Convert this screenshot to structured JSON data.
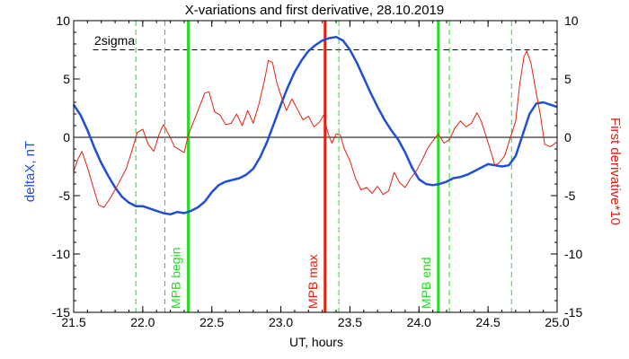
{
  "chart_data": {
    "type": "line",
    "title": "X-variations and first derivative, 28.10.2019",
    "xlabel": "UT, hours",
    "ylabel_left": "deltaX, nT",
    "ylabel_right": "First derivative*10",
    "xlim": [
      21.5,
      25.0
    ],
    "ylim": [
      -15,
      10
    ],
    "x_ticks": [
      "21.5",
      "22.0",
      "22.5",
      "23.0",
      "23.5",
      "24.0",
      "24.5",
      "25.0"
    ],
    "y_ticks_left": [
      "10",
      "5",
      "0",
      "-5",
      "-10",
      "-15"
    ],
    "y_ticks_right": [
      "10",
      "5",
      "0",
      "-5",
      "-10",
      "-15"
    ],
    "threshold": {
      "label": "2sigma",
      "value": 7.5
    },
    "zero_line": 0,
    "series": [
      {
        "color": "#1f4fd8",
        "axis": "left",
        "points": [
          [
            21.5,
            2.8
          ],
          [
            21.55,
            1.9
          ],
          [
            21.6,
            0.6
          ],
          [
            21.65,
            -0.9
          ],
          [
            21.7,
            -2.2
          ],
          [
            21.75,
            -3.3
          ],
          [
            21.8,
            -4.3
          ],
          [
            21.85,
            -5.1
          ],
          [
            21.9,
            -5.6
          ],
          [
            21.95,
            -5.9
          ],
          [
            22.0,
            -5.9
          ],
          [
            22.05,
            -6.1
          ],
          [
            22.1,
            -6.3
          ],
          [
            22.15,
            -6.5
          ],
          [
            22.2,
            -6.6
          ],
          [
            22.25,
            -6.4
          ],
          [
            22.3,
            -6.5
          ],
          [
            22.35,
            -6.3
          ],
          [
            22.4,
            -6.0
          ],
          [
            22.45,
            -5.5
          ],
          [
            22.5,
            -4.7
          ],
          [
            22.55,
            -4.1
          ],
          [
            22.6,
            -3.8
          ],
          [
            22.7,
            -3.5
          ],
          [
            22.75,
            -3.2
          ],
          [
            22.8,
            -2.7
          ],
          [
            22.85,
            -1.7
          ],
          [
            22.9,
            -0.4
          ],
          [
            22.95,
            1.2
          ],
          [
            23.0,
            2.8
          ],
          [
            23.05,
            4.3
          ],
          [
            23.1,
            5.6
          ],
          [
            23.15,
            6.6
          ],
          [
            23.2,
            7.4
          ],
          [
            23.25,
            7.9
          ],
          [
            23.3,
            8.3
          ],
          [
            23.35,
            8.5
          ],
          [
            23.4,
            8.6
          ],
          [
            23.45,
            8.3
          ],
          [
            23.5,
            7.5
          ],
          [
            23.55,
            6.4
          ],
          [
            23.6,
            5.1
          ],
          [
            23.65,
            3.8
          ],
          [
            23.7,
            2.6
          ],
          [
            23.75,
            1.5
          ],
          [
            23.8,
            0.6
          ],
          [
            23.85,
            -0.2
          ],
          [
            23.9,
            -1.3
          ],
          [
            23.95,
            -2.6
          ],
          [
            24.0,
            -3.6
          ],
          [
            24.05,
            -4.0
          ],
          [
            24.1,
            -4.1
          ],
          [
            24.15,
            -4.0
          ],
          [
            24.2,
            -3.8
          ],
          [
            24.25,
            -3.5
          ],
          [
            24.3,
            -3.4
          ],
          [
            24.35,
            -3.2
          ],
          [
            24.4,
            -2.9
          ],
          [
            24.45,
            -2.6
          ],
          [
            24.5,
            -2.3
          ],
          [
            24.55,
            -2.4
          ],
          [
            24.6,
            -2.5
          ],
          [
            24.65,
            -2.4
          ],
          [
            24.7,
            -1.6
          ],
          [
            24.75,
            0.2
          ],
          [
            24.8,
            2.0
          ],
          [
            24.85,
            2.9
          ],
          [
            24.9,
            3.0
          ],
          [
            24.95,
            2.8
          ],
          [
            25.0,
            2.6
          ]
        ]
      },
      {
        "color": "#e2200f",
        "axis": "right",
        "points": [
          [
            21.5,
            -2.9
          ],
          [
            21.53,
            -1.9
          ],
          [
            21.56,
            -1.2
          ],
          [
            21.6,
            -2.6
          ],
          [
            21.64,
            -4.2
          ],
          [
            21.68,
            -5.8
          ],
          [
            21.72,
            -6.0
          ],
          [
            21.76,
            -5.3
          ],
          [
            21.8,
            -4.5
          ],
          [
            21.84,
            -3.6
          ],
          [
            21.88,
            -2.7
          ],
          [
            21.92,
            -1.2
          ],
          [
            21.96,
            0.4
          ],
          [
            22.0,
            0.7
          ],
          [
            22.04,
            -0.6
          ],
          [
            22.08,
            -1.2
          ],
          [
            22.12,
            0.3
          ],
          [
            22.15,
            1.1
          ],
          [
            22.19,
            0.2
          ],
          [
            22.23,
            -0.8
          ],
          [
            22.27,
            -1.1
          ],
          [
            22.3,
            -1.3
          ],
          [
            22.33,
            0.2
          ],
          [
            22.37,
            1.4
          ],
          [
            22.41,
            2.6
          ],
          [
            22.45,
            3.8
          ],
          [
            22.48,
            3.9
          ],
          [
            22.52,
            2.2
          ],
          [
            22.56,
            1.9
          ],
          [
            22.6,
            1.1
          ],
          [
            22.64,
            1.2
          ],
          [
            22.68,
            2.0
          ],
          [
            22.72,
            1.0
          ],
          [
            22.76,
            2.3
          ],
          [
            22.8,
            1.2
          ],
          [
            22.84,
            2.8
          ],
          [
            22.88,
            4.8
          ],
          [
            22.91,
            6.6
          ],
          [
            22.94,
            6.4
          ],
          [
            22.97,
            4.7
          ],
          [
            23.0,
            3.6
          ],
          [
            23.04,
            2.3
          ],
          [
            23.08,
            3.3
          ],
          [
            23.12,
            2.4
          ],
          [
            23.16,
            1.5
          ],
          [
            23.2,
            1.8
          ],
          [
            23.24,
            0.9
          ],
          [
            23.28,
            1.3
          ],
          [
            23.31,
            1.9
          ],
          [
            23.34,
            0.4
          ],
          [
            23.37,
            -0.5
          ],
          [
            23.4,
            0.3
          ],
          [
            23.43,
            0.2
          ],
          [
            23.46,
            -1.0
          ],
          [
            23.5,
            -2.0
          ],
          [
            23.54,
            -3.5
          ],
          [
            23.58,
            -4.5
          ],
          [
            23.62,
            -4.3
          ],
          [
            23.66,
            -4.8
          ],
          [
            23.7,
            -4.2
          ],
          [
            23.74,
            -4.9
          ],
          [
            23.78,
            -4.6
          ],
          [
            23.82,
            -3.0
          ],
          [
            23.86,
            -3.9
          ],
          [
            23.9,
            -4.3
          ],
          [
            23.94,
            -3.5
          ],
          [
            23.98,
            -2.9
          ],
          [
            24.02,
            -2.0
          ],
          [
            24.06,
            -1.0
          ],
          [
            24.1,
            -0.3
          ],
          [
            24.14,
            0.3
          ],
          [
            24.18,
            -0.5
          ],
          [
            24.22,
            -0.2
          ],
          [
            24.26,
            0.8
          ],
          [
            24.3,
            1.4
          ],
          [
            24.34,
            0.9
          ],
          [
            24.38,
            1.2
          ],
          [
            24.42,
            2.1
          ],
          [
            24.45,
            1.4
          ],
          [
            24.48,
            0.3
          ],
          [
            24.52,
            -1.2
          ],
          [
            24.55,
            -2.4
          ],
          [
            24.58,
            -2.2
          ],
          [
            24.62,
            -1.6
          ],
          [
            24.66,
            -0.1
          ],
          [
            24.7,
            1.4
          ],
          [
            24.73,
            4.6
          ],
          [
            24.76,
            6.9
          ],
          [
            24.78,
            7.4
          ],
          [
            24.81,
            6.4
          ],
          [
            24.84,
            4.4
          ],
          [
            24.88,
            1.8
          ],
          [
            24.91,
            -0.6
          ],
          [
            24.95,
            -0.8
          ],
          [
            25.0,
            -0.4
          ]
        ]
      }
    ],
    "vertical_markers": [
      {
        "x": 21.95,
        "color": "#22dd22",
        "style": "dashed"
      },
      {
        "x": 22.16,
        "color": "#22dd22",
        "style": "dashed"
      },
      {
        "x": 22.33,
        "color": "#22dd22",
        "style": "solid",
        "label": "MPB begin"
      },
      {
        "x": 23.32,
        "color": "#e2200f",
        "style": "solid",
        "label": "MPB max"
      },
      {
        "x": 23.42,
        "color": "#22dd22",
        "style": "dashed"
      },
      {
        "x": 24.14,
        "color": "#22dd22",
        "style": "solid",
        "label": "MPB end"
      },
      {
        "x": 24.22,
        "color": "#22dd22",
        "style": "dashed"
      },
      {
        "x": 24.67,
        "color": "#22dd22",
        "style": "dashed"
      }
    ],
    "grid": false
  }
}
